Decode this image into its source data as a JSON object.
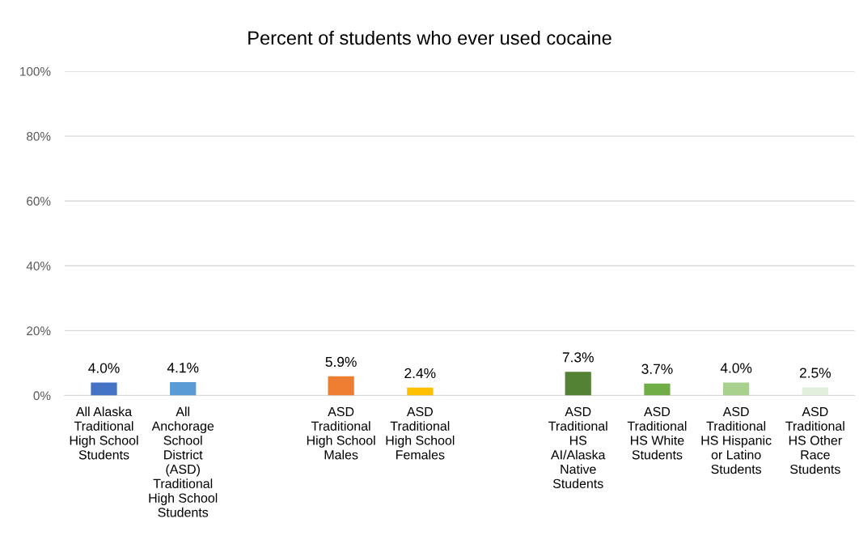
{
  "chart_data": {
    "type": "bar",
    "title": "Percent of students who ever used cocaine",
    "categories": [
      "All Alaska\nTraditional\nHigh School\nStudents",
      "All\nAnchorage\nSchool\nDistrict\n(ASD)\nTraditional\nHigh School\nStudents",
      null,
      "ASD\nTraditional\nHigh School\nMales",
      "ASD\nTraditional\nHigh School\nFemales",
      null,
      "ASD\nTraditional\nHS\nAI/Alaska\nNative\nStudents",
      "ASD\nTraditional\nHS White\nStudents",
      "ASD\nTraditional\nHS Hispanic\nor Latino\nStudents",
      "ASD\nTraditional\nHS Other\nRace\nStudents"
    ],
    "values": [
      4.0,
      4.1,
      null,
      5.9,
      2.4,
      null,
      7.3,
      3.7,
      4.0,
      2.5
    ],
    "colors": [
      "#4472c4",
      "#5b9bd5",
      null,
      "#ed7d31",
      "#ffc000",
      null,
      "#548235",
      "#70ad47",
      "#a9d18e",
      "#e2efda"
    ],
    "value_labels": [
      "4.0%",
      "4.1%",
      null,
      "5.9%",
      "2.4%",
      null,
      "7.3%",
      "3.7%",
      "4.0%",
      "2.5%"
    ],
    "ylim": [
      0,
      100
    ],
    "yticks": [
      {
        "value": 0,
        "label": "0%"
      },
      {
        "value": 20,
        "label": "20%"
      },
      {
        "value": 40,
        "label": "40%"
      },
      {
        "value": 60,
        "label": "60%"
      },
      {
        "value": 80,
        "label": "80%"
      },
      {
        "value": 100,
        "label": "100%"
      }
    ],
    "grid": "y"
  }
}
